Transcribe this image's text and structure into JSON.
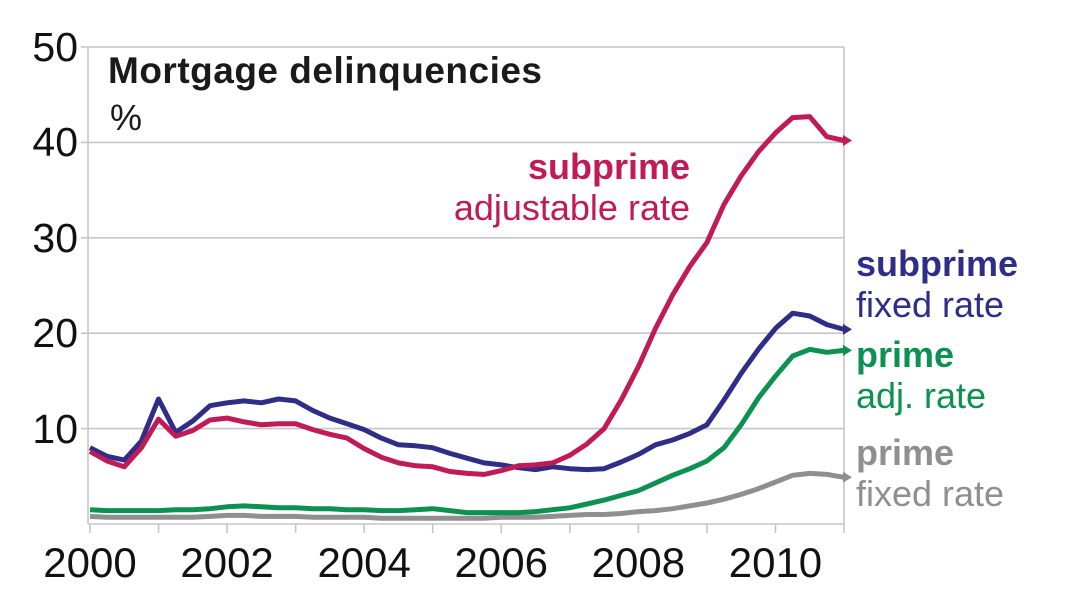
{
  "chart_data": {
    "type": "line",
    "title": "Mortgage delinquencies",
    "unit_label": "%",
    "xlim": [
      2000,
      2011
    ],
    "ylim": [
      0,
      50
    ],
    "grid": "horizontal-only",
    "legend_position": "direct-line-labels",
    "y_ticks": [
      10,
      20,
      30,
      40,
      50
    ],
    "x_tick_years": [
      2000,
      2001,
      2002,
      2003,
      2004,
      2005,
      2006,
      2007,
      2008,
      2009,
      2010,
      2011
    ],
    "x_labeled_years": [
      2000,
      2002,
      2004,
      2006,
      2008,
      2010
    ],
    "x": [
      2000.0,
      2000.25,
      2000.5,
      2000.75,
      2001.0,
      2001.25,
      2001.5,
      2001.75,
      2002.0,
      2002.25,
      2002.5,
      2002.75,
      2003.0,
      2003.25,
      2003.5,
      2003.75,
      2004.0,
      2004.25,
      2004.5,
      2004.75,
      2005.0,
      2005.25,
      2005.5,
      2005.75,
      2006.0,
      2006.25,
      2006.5,
      2006.75,
      2007.0,
      2007.25,
      2007.5,
      2007.75,
      2008.0,
      2008.25,
      2008.5,
      2008.75,
      2009.0,
      2009.25,
      2009.5,
      2009.75,
      2010.0,
      2010.25,
      2010.5,
      2010.75,
      2011.0
    ],
    "series": [
      {
        "id": "prime-fixed",
        "name": "prime fixed rate",
        "label_lines": [
          "prime",
          "fixed rate"
        ],
        "color": "#8f8f8f",
        "values": [
          0.8,
          0.7,
          0.7,
          0.7,
          0.7,
          0.7,
          0.7,
          0.8,
          0.9,
          0.9,
          0.8,
          0.8,
          0.8,
          0.7,
          0.7,
          0.7,
          0.7,
          0.6,
          0.6,
          0.6,
          0.6,
          0.6,
          0.6,
          0.6,
          0.7,
          0.7,
          0.7,
          0.8,
          0.9,
          1.0,
          1.0,
          1.1,
          1.3,
          1.4,
          1.6,
          1.9,
          2.2,
          2.6,
          3.1,
          3.7,
          4.4,
          5.1,
          5.3,
          5.2,
          4.9
        ]
      },
      {
        "id": "prime-adj",
        "name": "prime adj. rate",
        "label_lines": [
          "prime",
          "adj. rate"
        ],
        "color": "#0d9150",
        "values": [
          1.5,
          1.4,
          1.4,
          1.4,
          1.4,
          1.5,
          1.5,
          1.6,
          1.8,
          1.9,
          1.8,
          1.7,
          1.7,
          1.6,
          1.6,
          1.5,
          1.5,
          1.4,
          1.4,
          1.5,
          1.6,
          1.4,
          1.2,
          1.2,
          1.2,
          1.2,
          1.3,
          1.5,
          1.7,
          2.1,
          2.5,
          3.0,
          3.5,
          4.3,
          5.1,
          5.8,
          6.6,
          8.0,
          10.4,
          13.2,
          15.5,
          17.6,
          18.3,
          18.0,
          18.2
        ]
      },
      {
        "id": "subprime-fixed",
        "name": "subprime fixed rate",
        "label_lines": [
          "subprime",
          "fixed rate"
        ],
        "color": "#2e2d88",
        "values": [
          8.0,
          7.1,
          6.7,
          8.7,
          13.1,
          9.6,
          10.8,
          12.4,
          12.7,
          12.9,
          12.7,
          13.1,
          12.9,
          11.9,
          11.1,
          10.5,
          9.9,
          9.0,
          8.3,
          8.2,
          8.0,
          7.4,
          6.9,
          6.4,
          6.2,
          5.9,
          5.7,
          6.0,
          5.8,
          5.7,
          5.8,
          6.5,
          7.3,
          8.3,
          8.8,
          9.5,
          10.4,
          13.0,
          15.8,
          18.3,
          20.5,
          22.1,
          21.8,
          20.9,
          20.4
        ]
      },
      {
        "id": "subprime-adjustable",
        "name": "subprime adjustable rate",
        "label_lines": [
          "subprime",
          "adjustable rate"
        ],
        "color": "#c01a57",
        "values": [
          7.6,
          6.6,
          6.0,
          8.0,
          11.0,
          9.2,
          9.8,
          10.9,
          11.1,
          10.7,
          10.4,
          10.5,
          10.5,
          9.9,
          9.4,
          9.0,
          7.9,
          7.0,
          6.4,
          6.1,
          6.0,
          5.5,
          5.3,
          5.2,
          5.6,
          6.1,
          6.2,
          6.4,
          7.2,
          8.4,
          10.0,
          13.0,
          16.5,
          20.5,
          24.0,
          27.0,
          29.5,
          33.5,
          36.5,
          39.0,
          41.0,
          42.6,
          42.7,
          40.6,
          40.2
        ]
      }
    ],
    "colors": {
      "grid": "#c6c6c6",
      "axis": "#c6c6c6",
      "text": "#111111"
    }
  }
}
